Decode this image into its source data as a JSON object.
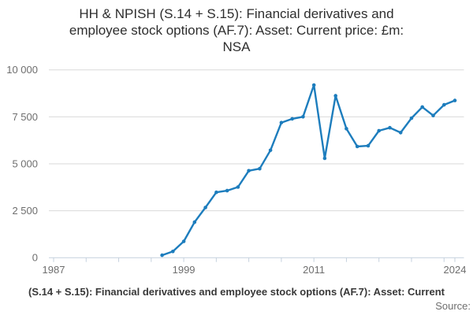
{
  "header": {
    "title_lines": [
      "HH & NPISH (S.14 + S.15): Financial derivatives and",
      "employee stock options (AF.7): Asset: Current price: £m:",
      "NSA"
    ]
  },
  "chart_data": {
    "type": "line",
    "title": "HH & NPISH (S.14 + S.15): Financial derivatives and employee stock options (AF.7): Asset: Current price: £m: NSA",
    "x": [
      1997,
      1998,
      1999,
      2000,
      2001,
      2002,
      2003,
      2004,
      2005,
      2006,
      2007,
      2008,
      2009,
      2010,
      2011,
      2012,
      2013,
      2014,
      2015,
      2016,
      2017,
      2018,
      2019,
      2020,
      2021,
      2022,
      2023,
      2024
    ],
    "values": [
      130,
      330,
      870,
      1890,
      2670,
      3480,
      3570,
      3760,
      4630,
      4740,
      5720,
      7190,
      7390,
      7500,
      9190,
      5290,
      8620,
      6870,
      5920,
      5960,
      6760,
      6920,
      6660,
      7430,
      8020,
      7570,
      8140,
      8370
    ],
    "xlabel": "",
    "ylabel": "",
    "ylim": [
      0,
      10000
    ],
    "xlim": [
      1986.5,
      2024.9
    ],
    "grid": true,
    "legend": "none",
    "y_ticks": [
      0,
      2500,
      5000,
      7500,
      10000
    ],
    "y_tick_labels": [
      "0",
      "2 500",
      "5 000",
      "7 500",
      "10 000"
    ],
    "x_major_tick_years": [
      1987,
      1999,
      2011,
      2024
    ],
    "x_major_tick_labels": [
      "1987",
      "1999",
      "2011",
      "2024"
    ],
    "x_minor_tick_start": 1987,
    "x_minor_tick_end": 2023,
    "x_minor_tick_step": 3,
    "marker": "circle"
  },
  "footer": {
    "series_label": "(S.14 + S.15): Financial derivatives and employee stock options (AF.7): Asset: Current",
    "source_label": "Source:"
  },
  "colors": {
    "line": "#1d7dbd",
    "marker": "#1d7dbd",
    "gridline": "#d9d9d9",
    "axis": "#c5d1de",
    "tick": "#c5d1de",
    "axis_label": "#6e6e6e",
    "title": "#2e2e2e",
    "footer_text": "#383838",
    "source_text": "#6e6e6e",
    "background": "#ffffff"
  }
}
